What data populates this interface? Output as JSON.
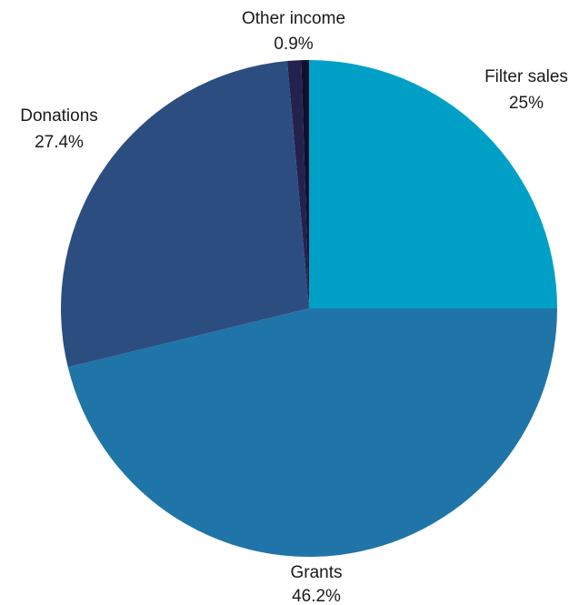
{
  "chart_data": {
    "type": "pie",
    "title": "",
    "start_angle_deg": 0,
    "direction": "clockwise",
    "slices": [
      {
        "label": "Filter sales",
        "value": 25,
        "display": "25%",
        "color": "#00a0c6"
      },
      {
        "label": "Grants",
        "value": 46.2,
        "display": "46.2%",
        "color": "#1f75a8"
      },
      {
        "label": "Donations",
        "value": 27.4,
        "display": "27.4%",
        "color": "#2c4d80"
      },
      {
        "label": "Other income",
        "value": 0.9,
        "display": "0.9%",
        "color": "#23224f"
      },
      {
        "label": "",
        "value": 0.5,
        "display": "",
        "color": "#0f0f2e"
      }
    ]
  }
}
